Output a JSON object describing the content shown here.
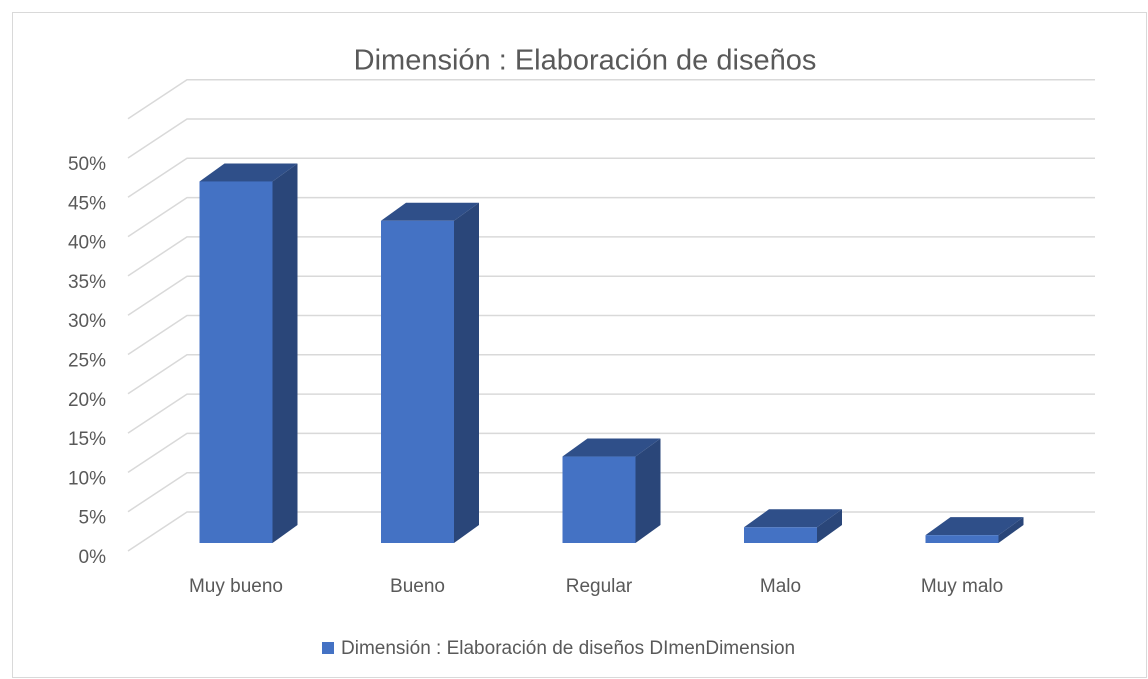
{
  "chart_data": {
    "type": "bar3d",
    "title": "Dimensión : Elaboración de diseños",
    "categories": [
      "Muy bueno",
      "Bueno",
      "Regular",
      "Malo",
      "Muy malo"
    ],
    "series": [
      {
        "name": "Dimensión : Elaboración de diseños DImenDimension",
        "color": "#4472c4",
        "values": [
          46,
          41,
          11,
          2,
          1
        ]
      }
    ],
    "ylim": [
      0,
      55
    ],
    "yticks": [
      {
        "value": 0,
        "label": "0%"
      },
      {
        "value": 5,
        "label": "5%"
      },
      {
        "value": 10,
        "label": "10%"
      },
      {
        "value": 15,
        "label": "15%"
      },
      {
        "value": 20,
        "label": "20%"
      },
      {
        "value": 25,
        "label": "25%"
      },
      {
        "value": 30,
        "label": "30%"
      },
      {
        "value": 35,
        "label": "35%"
      },
      {
        "value": 40,
        "label": "40%"
      },
      {
        "value": 45,
        "label": "45%"
      },
      {
        "value": 50,
        "label": "50%"
      }
    ],
    "grid": true,
    "legend": "bottom"
  }
}
